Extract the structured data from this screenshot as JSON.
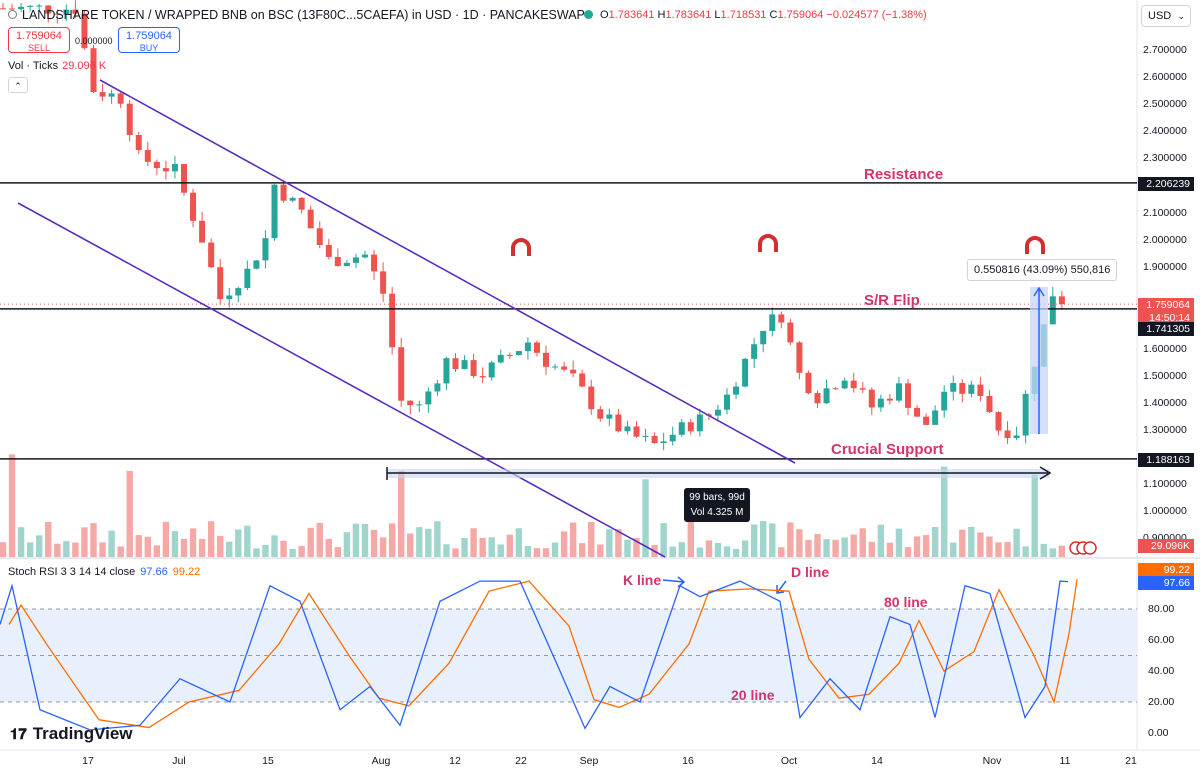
{
  "header": {
    "title": "LANDSHARE TOKEN / WRAPPED BNB on BSC (13F80C...5CAEFA) in USD · 1D · PANCAKESWAP",
    "ohlc_o_label": "O",
    "ohlc_o": "1.783641",
    "ohlc_h_label": "H",
    "ohlc_h": "1.783641",
    "ohlc_l_label": "L",
    "ohlc_l": "1.718531",
    "ohlc_c_label": "C",
    "ohlc_c": "1.759064",
    "ohlc_change": "−0.024577 (−1.38%)",
    "currency": "USD"
  },
  "trade": {
    "sell_price": "1.759064",
    "sell_label": "SELL",
    "buy_price": "1.759064",
    "buy_label": "BUY",
    "spread": "0.000000"
  },
  "volume_legend": {
    "label": "Vol · Ticks",
    "value": "29.096 K"
  },
  "rsi_legend": {
    "label": "Stoch RSI 3 3 14 14 close",
    "k": "97.66",
    "d": "99.22"
  },
  "branding": {
    "logo_text": "TradingView"
  },
  "annotations": {
    "resistance": "Resistance",
    "sr_flip": "S/R Flip",
    "crucial_support": "Crucial Support",
    "k_line": "K line",
    "d_line": "D line",
    "line_80": "80 line",
    "line_20": "20 line",
    "measure": "0.550816 (43.09%) 550,816",
    "range_bars": "99 bars, 99d",
    "range_vol": "Vol 4.325 M"
  },
  "price_axis": {
    "ticks": [
      "2.700000",
      "2.600000",
      "2.500000",
      "2.400000",
      "2.300000",
      "2.100000",
      "2.000000",
      "1.900000",
      "1.600000",
      "1.500000",
      "1.400000",
      "1.300000",
      "1.100000",
      "1.000000",
      "0.900000"
    ],
    "tags": {
      "resistance": "2.206239",
      "last_price": "1.759064",
      "countdown": "14:50:14",
      "sr_flip": "1.741305",
      "support": "1.188163",
      "volume": "29.096K"
    }
  },
  "rsi_axis": {
    "ticks": [
      "80.00",
      "60.00",
      "40.00",
      "20.00",
      "0.00"
    ],
    "tag_d": "99.22",
    "tag_k": "97.66"
  },
  "date_axis": {
    "ticks": [
      "17",
      "Jul",
      "15",
      "Aug",
      "12",
      "22",
      "Sep",
      "16",
      "Oct",
      "14",
      "Nov",
      "11",
      "21"
    ]
  },
  "colors": {
    "up": "#26a69a",
    "down": "#ef5350",
    "channel": "#5b2dbe",
    "annotation": "#d6336c",
    "k_line": "#2962ff",
    "d_line": "#ff6d00",
    "rsi_band": "#e8f0fd",
    "measure_fill": "#c6d6f5"
  },
  "chart_data": {
    "type": "candlestick",
    "price_scale": [
      0.9,
      2.7
    ],
    "levels": {
      "resistance": 2.206239,
      "sr_flip": 1.741305,
      "support": 1.188163
    },
    "candles_sample": [
      {
        "x": "start",
        "c": 2.85
      },
      {
        "x": "Jul",
        "c": 1.78
      },
      {
        "x": "15",
        "c": 2.2
      },
      {
        "x": "Aug",
        "c": 1.38
      },
      {
        "x": "22",
        "c": 1.72
      },
      {
        "x": "Sep",
        "c": 1.24
      },
      {
        "x": "Oct",
        "c": 1.68
      },
      {
        "x": "Nov",
        "c": 1.29
      },
      {
        "x": "last",
        "o": 1.783641,
        "h": 1.783641,
        "l": 1.718531,
        "c": 1.759064
      }
    ],
    "measure": {
      "change": 0.550816,
      "percent": 43.09,
      "ticks": 550816
    },
    "date_range": {
      "bars": 99,
      "days": 99,
      "volume": "4.325 M"
    },
    "stoch_rsi": {
      "k": 97.66,
      "d": 99.22,
      "upper": 80,
      "lower": 20,
      "ylim": [
        0,
        100
      ]
    }
  }
}
